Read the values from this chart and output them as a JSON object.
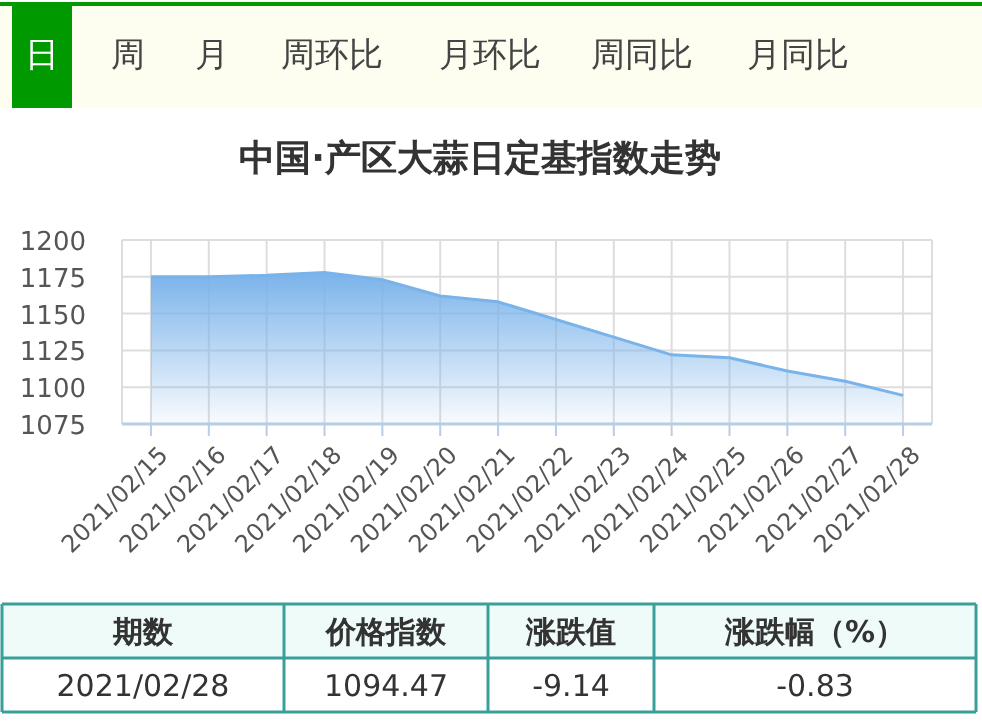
{
  "chart_data": [
    {
      "type": "other",
      "annotations": [
        "日",
        "周",
        "月",
        "周环比",
        "月环比",
        "周同比",
        "月同比"
      ]
    },
    {
      "type": "area",
      "title": "中国·产区大蒜日定基指数走势",
      "categories": [
        "2021/02/15",
        "2021/02/16",
        "2021/02/17",
        "2021/02/18",
        "2021/02/19",
        "2021/02/20",
        "2021/02/21",
        "2021/02/22",
        "2021/02/23",
        "2021/02/24",
        "2021/02/25",
        "2021/02/26",
        "2021/02/27",
        "2021/02/28"
      ],
      "series": [
        {
          "color": "#7ab3ea",
          "values": [
            1175,
            1175,
            1176,
            1178,
            1173,
            1162,
            1158,
            1146,
            1134,
            1122,
            1120,
            1111,
            1104,
            1094.47
          ]
        }
      ],
      "ylim": [
        1075,
        1200
      ],
      "yticks": [
        1075,
        1100,
        1125,
        1150,
        1175,
        1200
      ],
      "grid": true
    },
    {
      "type": "other",
      "categories": [
        "期数",
        "价格指数",
        "涨跌值",
        "涨跌幅（%）"
      ],
      "cell_labels": [
        [
          "2021/02/28",
          "1094.47",
          "-9.14",
          "-0.83"
        ]
      ]
    }
  ]
}
